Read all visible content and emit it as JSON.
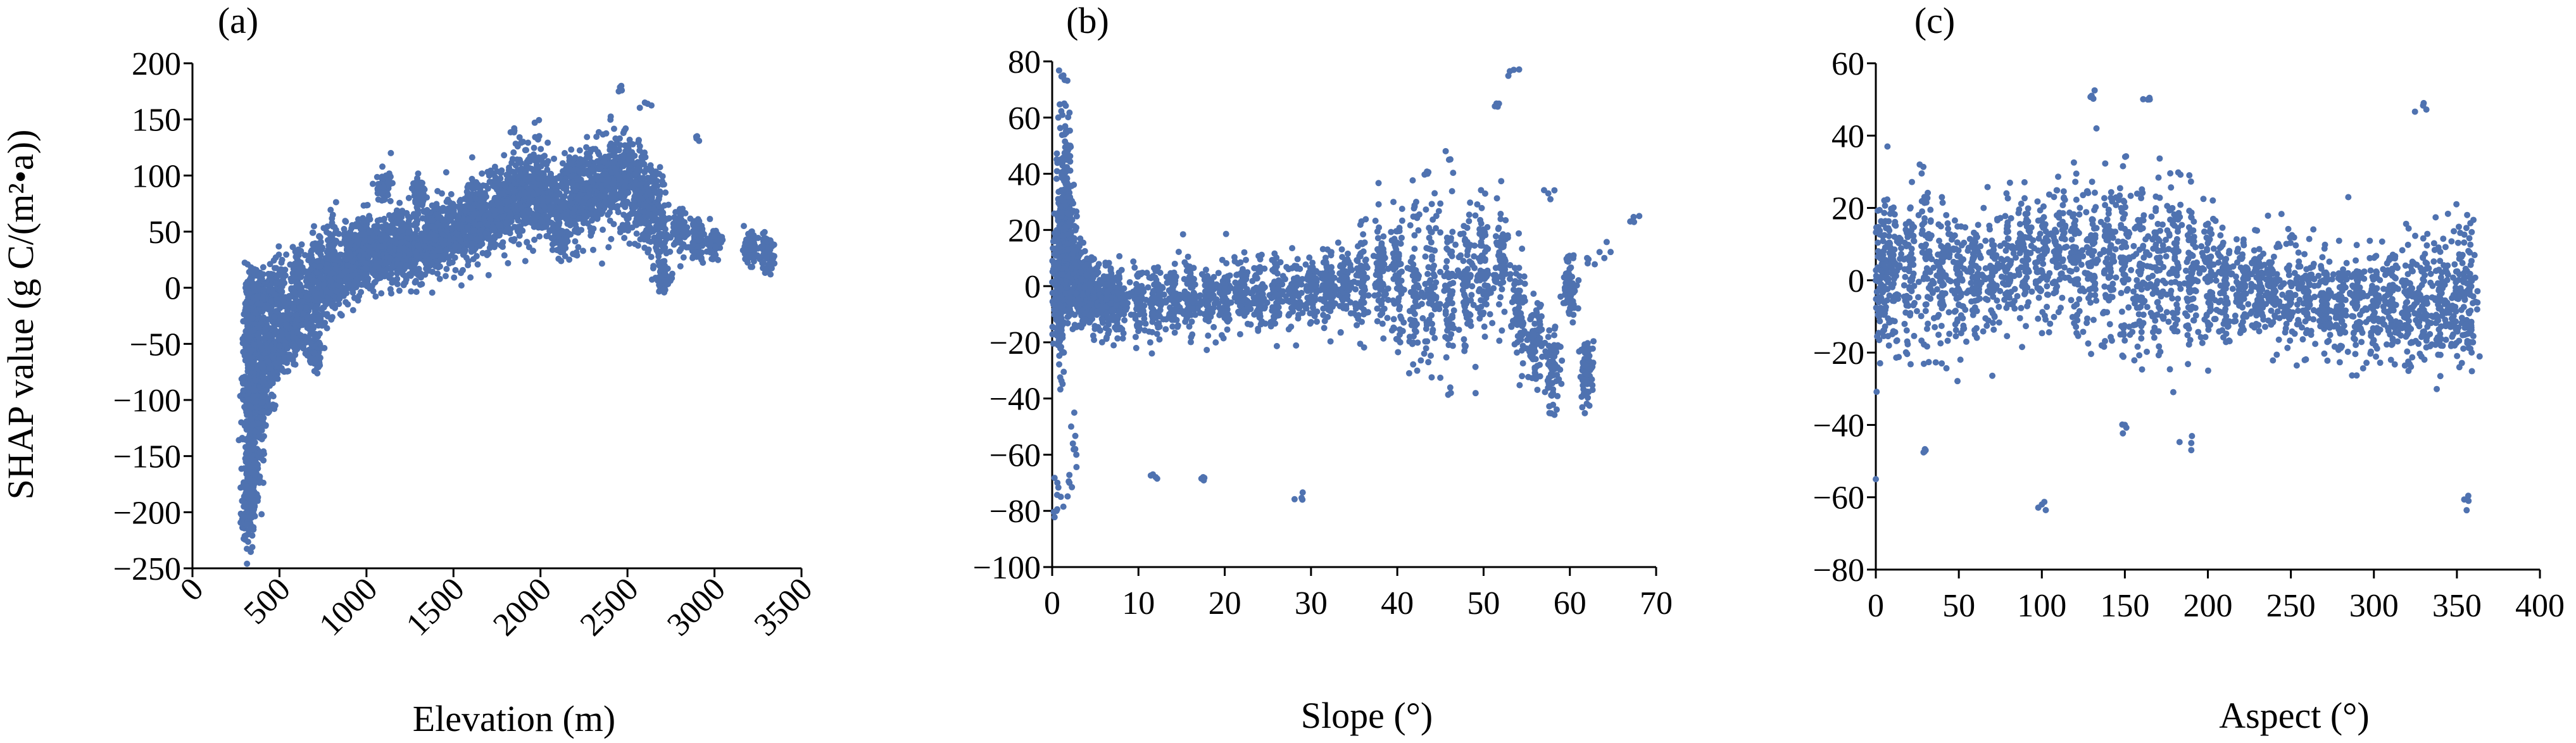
{
  "figure": {
    "y_axis_title": "SHAP value (g C/(m²•a))",
    "point_color": "#4f72b0"
  },
  "chart_data": [
    {
      "type": "scatter",
      "panel_label": "(a)",
      "xlabel": "Elevation (m)",
      "ylabel": "SHAP value (g C/(m²•a))",
      "xlim": [
        0,
        3500
      ],
      "ylim": [
        -250,
        200
      ],
      "xticks": [
        0,
        500,
        1000,
        1500,
        2000,
        2500,
        3000,
        3500
      ],
      "yticks": [
        -250,
        -200,
        -150,
        -100,
        -50,
        0,
        50,
        100,
        150,
        200
      ],
      "x_tick_rotation": -45,
      "x_tick_labels": [
        "0",
        "500",
        "1000",
        "1500",
        "2000",
        "2500",
        "3000",
        "3500"
      ],
      "y_tick_labels": [
        "−250",
        "−200",
        "−150",
        "−100",
        "−50",
        "0",
        "50",
        "100",
        "150",
        "200"
      ],
      "grid": false,
      "series": [
        {
          "color": "#4f72b0",
          "x": [
            320,
            330,
            340,
            350,
            360,
            380,
            400,
            420,
            450,
            480,
            520,
            560,
            600,
            650,
            700,
            750,
            800,
            850,
            900,
            950,
            1000,
            1050,
            1100,
            1150,
            1200,
            1250,
            1300,
            1350,
            1400,
            1450,
            1500,
            1550,
            1600,
            1650,
            1700,
            1750,
            1800,
            1850,
            1900,
            1950,
            2000,
            2050,
            2100,
            2150,
            2200,
            2250,
            2300,
            2350,
            2400,
            2450,
            2500,
            2550,
            2600,
            2650,
            2700,
            2800,
            2900,
            3000,
            3200,
            3300,
            320,
            340,
            360,
            400,
            450,
            500,
            600,
            700,
            800,
            900,
            1000,
            1200,
            1400,
            1600,
            1800,
            2000,
            2200,
            2400,
            330,
            345,
            360,
            380,
            420,
            500,
            1850,
            1900,
            2450,
            2600,
            2900,
            3250,
            330,
            340,
            350,
            370,
            700,
            1100,
            1300,
            2700
          ],
          "y": [
            -200,
            -180,
            -160,
            -140,
            -120,
            -100,
            -85,
            -75,
            -65,
            -55,
            -45,
            -40,
            -30,
            -20,
            -10,
            0,
            5,
            10,
            15,
            20,
            25,
            28,
            30,
            32,
            34,
            36,
            38,
            40,
            42,
            45,
            48,
            52,
            56,
            60,
            65,
            70,
            75,
            80,
            85,
            90,
            80,
            75,
            70,
            70,
            75,
            80,
            85,
            90,
            95,
            100,
            90,
            85,
            80,
            75,
            60,
            50,
            45,
            40,
            35,
            30,
            -100,
            -60,
            -30,
            -20,
            -10,
            0,
            10,
            20,
            30,
            35,
            40,
            45,
            50,
            60,
            70,
            80,
            90,
            100,
            -215,
            -195,
            -170,
            -150,
            -110,
            -70,
            140,
            130,
            175,
            165,
            135,
            35,
            -50,
            -20,
            0,
            -5,
            -60,
            90,
            85,
            10
          ],
          "spread": [
            25,
            25,
            30,
            30,
            30,
            30,
            30,
            28,
            25,
            25,
            22,
            22,
            22,
            22,
            22,
            22,
            20,
            20,
            20,
            20,
            22,
            22,
            22,
            22,
            22,
            22,
            22,
            22,
            22,
            22,
            22,
            24,
            24,
            25,
            25,
            25,
            25,
            28,
            28,
            30,
            30,
            30,
            30,
            28,
            28,
            28,
            30,
            30,
            30,
            30,
            30,
            30,
            30,
            25,
            25,
            15,
            15,
            10,
            10,
            10,
            20,
            20,
            20,
            20,
            20,
            20,
            20,
            20,
            20,
            20,
            20,
            20,
            20,
            20,
            20,
            20,
            20,
            20,
            5,
            5,
            5,
            5,
            5,
            5,
            5,
            5,
            5,
            5,
            5,
            5,
            10,
            10,
            10,
            10,
            10,
            10,
            10,
            10
          ]
        }
      ]
    },
    {
      "type": "scatter",
      "panel_label": "(b)",
      "xlabel": "Slope (°)",
      "ylabel": "",
      "xlim": [
        0,
        70
      ],
      "ylim": [
        -100,
        80
      ],
      "xticks": [
        0,
        10,
        20,
        30,
        40,
        50,
        60,
        70
      ],
      "yticks": [
        -100,
        -80,
        -60,
        -40,
        -20,
        0,
        20,
        40,
        60,
        80
      ],
      "x_tick_rotation": 0,
      "x_tick_labels": [
        "0",
        "10",
        "20",
        "30",
        "40",
        "50",
        "60",
        "70"
      ],
      "y_tick_labels": [
        "−100",
        "−80",
        "−60",
        "−40",
        "−20",
        "0",
        "20",
        "40",
        "60",
        "80"
      ],
      "grid": false,
      "series": [
        {
          "color": "#4f72b0",
          "x": [
            0.5,
            0.8,
            1.0,
            1.2,
            1.5,
            1.8,
            2.0,
            2.5,
            3.0,
            3.5,
            4.0,
            5.0,
            6.0,
            7.0,
            8.0,
            10,
            12,
            14,
            16,
            18,
            20,
            22,
            24,
            26,
            28,
            30,
            32,
            34,
            36,
            38,
            40,
            42,
            44,
            46,
            48,
            50,
            52,
            54,
            56,
            58,
            60,
            62,
            64,
            67,
            1.3,
            1.4,
            1.6,
            1.7,
            2.2,
            2.8,
            0.5,
            0.6,
            1.0,
            2.0,
            12.0,
            17.5,
            29.0,
            53.5,
            51.5,
            57.5,
            62.0,
            43.5,
            46.0
          ],
          "y": [
            0,
            -5,
            10,
            20,
            30,
            20,
            10,
            5,
            0,
            -2,
            -3,
            -4,
            -5,
            -5,
            -5,
            -5,
            -5,
            -5,
            -4,
            -4,
            -4,
            -3,
            -3,
            -2,
            -2,
            -1,
            0,
            0,
            1,
            2,
            3,
            2,
            0,
            -5,
            0,
            5,
            10,
            -10,
            -20,
            -30,
            0,
            -30,
            10,
            23,
            75,
            65,
            55,
            45,
            -50,
            -60,
            -80,
            -70,
            -75,
            -70,
            -68,
            -68,
            -76,
            77,
            65,
            33,
            10,
            40,
            45
          ],
          "spread": [
            15,
            20,
            20,
            25,
            25,
            20,
            18,
            12,
            10,
            10,
            9,
            9,
            9,
            9,
            9,
            9,
            9,
            9,
            9,
            9,
            9,
            9,
            9,
            9,
            9,
            9,
            9,
            10,
            12,
            15,
            18,
            20,
            20,
            20,
            18,
            18,
            15,
            15,
            10,
            10,
            8,
            8,
            5,
            2,
            2,
            2,
            2,
            2,
            5,
            5,
            2,
            2,
            2,
            2,
            2,
            2,
            2,
            2,
            2,
            2,
            2,
            4,
            4
          ]
        }
      ]
    },
    {
      "type": "scatter",
      "panel_label": "(c)",
      "xlabel": "Aspect (°)",
      "ylabel": "",
      "xlim": [
        0,
        400
      ],
      "ylim": [
        -80,
        60
      ],
      "xticks": [
        0,
        50,
        100,
        150,
        200,
        250,
        300,
        350,
        400
      ],
      "yticks": [
        -80,
        -60,
        -40,
        -20,
        0,
        20,
        40,
        60
      ],
      "x_tick_rotation": 0,
      "x_tick_labels": [
        "0",
        "50",
        "100",
        "150",
        "200",
        "250",
        "300",
        "350",
        "400"
      ],
      "y_tick_labels": [
        "−80",
        "−60",
        "−40",
        "−20",
        "0",
        "20",
        "40",
        "60"
      ],
      "grid": false,
      "series": [
        {
          "color": "#4f72b0",
          "x": [
            0,
            5,
            10,
            20,
            30,
            40,
            50,
            60,
            70,
            80,
            90,
            100,
            110,
            120,
            130,
            140,
            150,
            160,
            170,
            180,
            190,
            200,
            210,
            220,
            230,
            240,
            250,
            260,
            270,
            280,
            290,
            300,
            310,
            320,
            330,
            340,
            350,
            358,
            100,
            150,
            30,
            190,
            357,
            0,
            130,
            330,
            165
          ],
          "y": [
            0,
            2,
            3,
            3,
            2,
            1,
            0,
            1,
            2,
            4,
            5,
            6,
            6,
            5,
            5,
            4,
            4,
            3,
            3,
            2,
            2,
            1,
            0,
            -1,
            -2,
            -3,
            -4,
            -5,
            -6,
            -7,
            -7,
            -7,
            -7,
            -6,
            -6,
            -5,
            -5,
            -4,
            -62,
            -40,
            -47,
            -45,
            -61,
            -55,
            51,
            49,
            50
          ],
          "spread": [
            15,
            15,
            16,
            16,
            15,
            14,
            12,
            12,
            12,
            12,
            12,
            12,
            13,
            14,
            16,
            17,
            18,
            18,
            17,
            16,
            15,
            13,
            12,
            11,
            10,
            10,
            10,
            10,
            10,
            10,
            10,
            10,
            11,
            12,
            13,
            14,
            15,
            14,
            2,
            2,
            2,
            2,
            2,
            2,
            2,
            2,
            2
          ]
        }
      ]
    }
  ]
}
